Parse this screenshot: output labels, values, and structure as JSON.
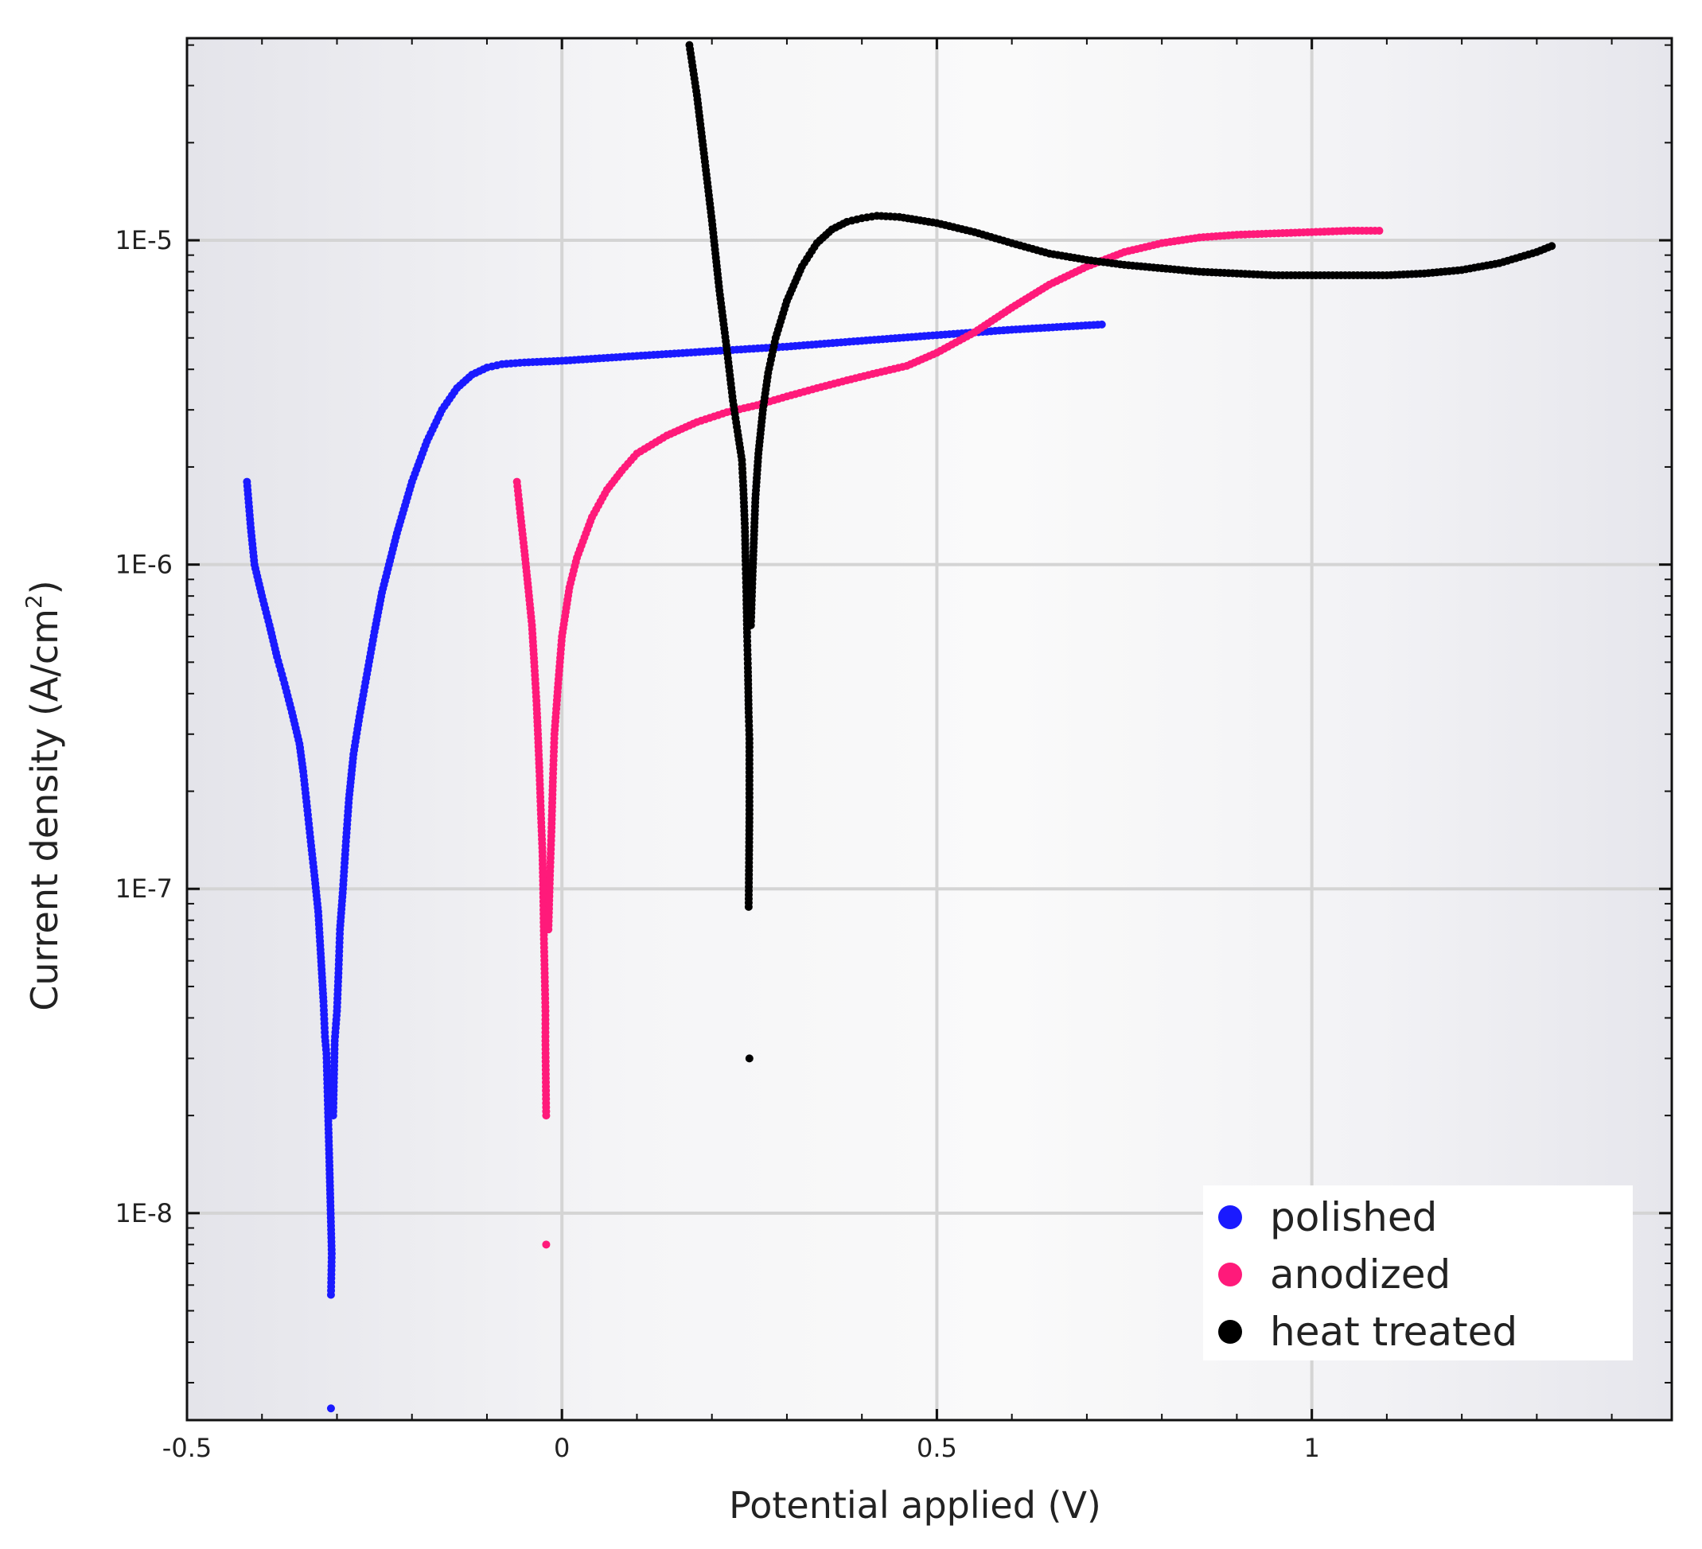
{
  "chart_data": {
    "type": "scatter",
    "title": "",
    "xlabel": "Potential applied (V)",
    "ylabel_prefix": "Current density (A/cm",
    "ylabel_sup": "2",
    "ylabel_suffix": ")",
    "xlim": [
      -0.5,
      1.48
    ],
    "ylim": [
      2.3e-09,
      4.2e-05
    ],
    "yscale": "log",
    "x_ticks": [
      {
        "value": -0.5,
        "label": "-0.5"
      },
      {
        "value": 0,
        "label": "0"
      },
      {
        "value": 0.5,
        "label": "0.5"
      },
      {
        "value": 1,
        "label": "1"
      }
    ],
    "y_ticks": [
      {
        "value": 1e-08,
        "label": "1E-8"
      },
      {
        "value": 1e-07,
        "label": "1E-7"
      },
      {
        "value": 1e-06,
        "label": "1E-6"
      },
      {
        "value": 1e-05,
        "label": "1E-5"
      }
    ],
    "grid": true,
    "legend_position": "bottom-right",
    "series": [
      {
        "name": "polished",
        "color": "#1a1aff",
        "points": [
          [
            -0.42,
            1.8e-06
          ],
          [
            -0.415,
            1.3e-06
          ],
          [
            -0.41,
            1e-06
          ],
          [
            -0.4,
            8e-07
          ],
          [
            -0.39,
            6.5e-07
          ],
          [
            -0.38,
            5.2e-07
          ],
          [
            -0.37,
            4.3e-07
          ],
          [
            -0.36,
            3.5e-07
          ],
          [
            -0.35,
            2.8e-07
          ],
          [
            -0.345,
            2.3e-07
          ],
          [
            -0.34,
            1.8e-07
          ],
          [
            -0.335,
            1.4e-07
          ],
          [
            -0.33,
            1.1e-07
          ],
          [
            -0.325,
            8.5e-08
          ],
          [
            -0.322,
            6.5e-08
          ],
          [
            -0.318,
            4.5e-08
          ],
          [
            -0.316,
            3.5e-08
          ],
          [
            -0.314,
            3.1e-08
          ],
          [
            -0.312,
            2.1e-08
          ],
          [
            -0.31,
            1.4e-08
          ],
          [
            -0.307,
            7.5e-09
          ],
          [
            -0.308,
            5.6e-09
          ],
          [
            -0.308,
            2.5e-09
          ],
          [
            -0.305,
            2e-08
          ],
          [
            -0.303,
            3.4e-08
          ],
          [
            -0.3,
            4.2e-08
          ],
          [
            -0.298,
            5.5e-08
          ],
          [
            -0.296,
            7.5e-08
          ],
          [
            -0.292,
            1e-07
          ],
          [
            -0.288,
            1.4e-07
          ],
          [
            -0.284,
            1.9e-07
          ],
          [
            -0.278,
            2.6e-07
          ],
          [
            -0.27,
            3.4e-07
          ],
          [
            -0.26,
            4.6e-07
          ],
          [
            -0.25,
            6.2e-07
          ],
          [
            -0.24,
            8.2e-07
          ],
          [
            -0.22,
            1.25e-06
          ],
          [
            -0.2,
            1.8e-06
          ],
          [
            -0.18,
            2.4e-06
          ],
          [
            -0.16,
            3e-06
          ],
          [
            -0.14,
            3.5e-06
          ],
          [
            -0.12,
            3.85e-06
          ],
          [
            -0.1,
            4.05e-06
          ],
          [
            -0.08,
            4.15e-06
          ],
          [
            -0.05,
            4.2e-06
          ],
          [
            0.0,
            4.25e-06
          ],
          [
            0.1,
            4.4e-06
          ],
          [
            0.2,
            4.55e-06
          ],
          [
            0.3,
            4.7e-06
          ],
          [
            0.4,
            4.9e-06
          ],
          [
            0.5,
            5.1e-06
          ],
          [
            0.6,
            5.3e-06
          ],
          [
            0.72,
            5.5e-06
          ]
        ]
      },
      {
        "name": "anodized",
        "color": "#ff1a7a",
        "points": [
          [
            -0.06,
            1.8e-06
          ],
          [
            -0.055,
            1.4e-06
          ],
          [
            -0.05,
            1.1e-06
          ],
          [
            -0.045,
            8.5e-07
          ],
          [
            -0.04,
            6.5e-07
          ],
          [
            -0.037,
            5e-07
          ],
          [
            -0.034,
            3.8e-07
          ],
          [
            -0.032,
            3e-07
          ],
          [
            -0.03,
            2.3e-07
          ],
          [
            -0.028,
            1.7e-07
          ],
          [
            -0.026,
            1.3e-07
          ],
          [
            -0.025,
            1e-07
          ],
          [
            -0.024,
            7e-08
          ],
          [
            -0.023,
            5.5e-08
          ],
          [
            -0.022,
            4.2e-08
          ],
          [
            -0.022,
            3.4e-08
          ],
          [
            -0.021,
            2e-08
          ],
          [
            -0.021,
            8e-09
          ],
          [
            -0.018,
            7.5e-08
          ],
          [
            -0.016,
            1.1e-07
          ],
          [
            -0.014,
            1.5e-07
          ],
          [
            -0.012,
            2.2e-07
          ],
          [
            -0.01,
            3e-07
          ],
          [
            -0.005,
            4.3e-07
          ],
          [
            0.0,
            6e-07
          ],
          [
            0.01,
            8.5e-07
          ],
          [
            0.02,
            1.05e-06
          ],
          [
            0.04,
            1.4e-06
          ],
          [
            0.06,
            1.7e-06
          ],
          [
            0.08,
            1.95e-06
          ],
          [
            0.1,
            2.2e-06
          ],
          [
            0.14,
            2.5e-06
          ],
          [
            0.18,
            2.75e-06
          ],
          [
            0.22,
            2.95e-06
          ],
          [
            0.26,
            3.1e-06
          ],
          [
            0.3,
            3.3e-06
          ],
          [
            0.34,
            3.5e-06
          ],
          [
            0.38,
            3.7e-06
          ],
          [
            0.42,
            3.9e-06
          ],
          [
            0.46,
            4.1e-06
          ],
          [
            0.5,
            4.5e-06
          ],
          [
            0.55,
            5.2e-06
          ],
          [
            0.6,
            6.2e-06
          ],
          [
            0.65,
            7.3e-06
          ],
          [
            0.7,
            8.3e-06
          ],
          [
            0.75,
            9.2e-06
          ],
          [
            0.8,
            9.8e-06
          ],
          [
            0.85,
            1.02e-05
          ],
          [
            0.9,
            1.04e-05
          ],
          [
            0.95,
            1.05e-05
          ],
          [
            1.0,
            1.06e-05
          ],
          [
            1.05,
            1.07e-05
          ],
          [
            1.09,
            1.07e-05
          ]
        ]
      },
      {
        "name": "heat treated",
        "color": "#000000",
        "points": [
          [
            0.17,
            4e-05
          ],
          [
            0.18,
            2.8e-05
          ],
          [
            0.19,
            1.8e-05
          ],
          [
            0.2,
            1.15e-05
          ],
          [
            0.21,
            7e-06
          ],
          [
            0.22,
            4.6e-06
          ],
          [
            0.228,
            3.2e-06
          ],
          [
            0.235,
            2.5e-06
          ],
          [
            0.24,
            2.1e-06
          ],
          [
            0.242,
            1.7e-06
          ],
          [
            0.244,
            1.3e-06
          ],
          [
            0.245,
            1e-06
          ],
          [
            0.246,
            8e-07
          ],
          [
            0.247,
            6e-07
          ],
          [
            0.248,
            4.8e-07
          ],
          [
            0.249,
            3.5e-07
          ],
          [
            0.25,
            2.9e-07
          ],
          [
            0.25,
            1.7e-07
          ],
          [
            0.249,
            8.8e-08
          ],
          [
            0.25,
            3e-08
          ],
          [
            0.252,
            6.5e-07
          ],
          [
            0.254,
            9e-07
          ],
          [
            0.256,
            1.2e-06
          ],
          [
            0.258,
            1.6e-06
          ],
          [
            0.262,
            2.2e-06
          ],
          [
            0.268,
            3e-06
          ],
          [
            0.275,
            3.9e-06
          ],
          [
            0.285,
            5e-06
          ],
          [
            0.3,
            6.5e-06
          ],
          [
            0.32,
            8.3e-06
          ],
          [
            0.34,
            9.8e-06
          ],
          [
            0.36,
            1.08e-05
          ],
          [
            0.38,
            1.14e-05
          ],
          [
            0.4,
            1.17e-05
          ],
          [
            0.42,
            1.19e-05
          ],
          [
            0.45,
            1.18e-05
          ],
          [
            0.5,
            1.13e-05
          ],
          [
            0.55,
            1.06e-05
          ],
          [
            0.6,
            9.8e-06
          ],
          [
            0.65,
            9.1e-06
          ],
          [
            0.7,
            8.7e-06
          ],
          [
            0.75,
            8.4e-06
          ],
          [
            0.8,
            8.2e-06
          ],
          [
            0.85,
            8e-06
          ],
          [
            0.9,
            7.9e-06
          ],
          [
            0.95,
            7.8e-06
          ],
          [
            1.0,
            7.8e-06
          ],
          [
            1.05,
            7.8e-06
          ],
          [
            1.1,
            7.8e-06
          ],
          [
            1.15,
            7.9e-06
          ],
          [
            1.2,
            8.1e-06
          ],
          [
            1.25,
            8.5e-06
          ],
          [
            1.3,
            9.2e-06
          ],
          [
            1.32,
            9.6e-06
          ]
        ]
      }
    ]
  }
}
